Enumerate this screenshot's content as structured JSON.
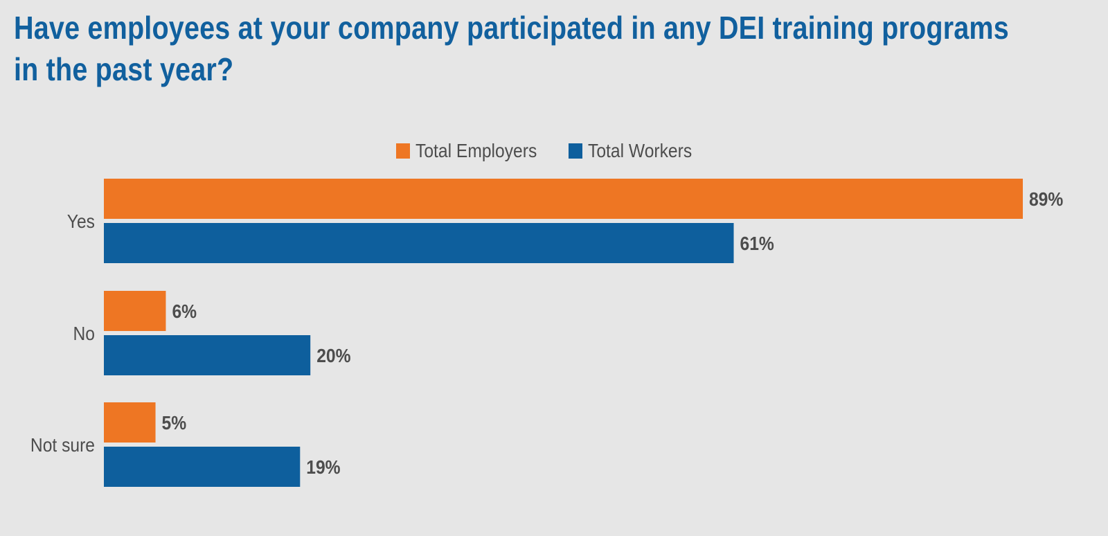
{
  "chart_data": {
    "type": "bar",
    "orientation": "horizontal",
    "title_lines": [
      "Have employees at your company participated in any DEI training programs",
      "in the past year?"
    ],
    "categories": [
      "Yes",
      "No",
      "Not sure"
    ],
    "series": [
      {
        "name": "Total Employers",
        "color": "#ee7623",
        "values": [
          89,
          6,
          5
        ],
        "labels": [
          "89%",
          "6%",
          "5%"
        ]
      },
      {
        "name": "Total Workers",
        "color": "#0e5f9d",
        "values": [
          61,
          20,
          19
        ],
        "labels": [
          "61%",
          "20%",
          "19%"
        ]
      }
    ],
    "unit": "%",
    "legend_position": "top-center",
    "grid": false
  }
}
